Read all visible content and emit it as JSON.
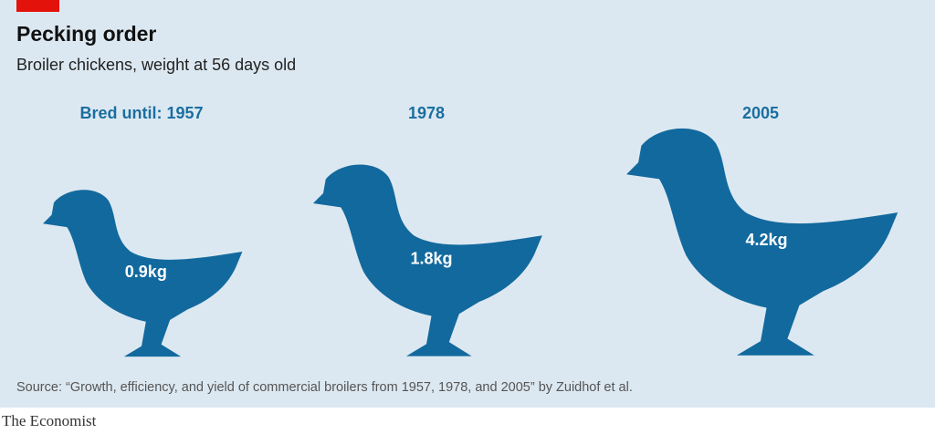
{
  "chart_data": {
    "type": "pictogram",
    "title": "Pecking order",
    "subtitle": "Broiler chickens, weight at 56 days old",
    "categories": [
      "Bred until: 1957",
      "1978",
      "2005"
    ],
    "values": [
      0.9,
      1.8,
      4.2
    ],
    "value_labels": [
      "0.9kg",
      "1.8kg",
      "4.2kg"
    ],
    "color": "#12699e",
    "source": "Source: “Growth, efficiency, and yield of commercial broilers from 1957, 1978, and 2005” by Zuidhof et al.",
    "publisher": "The Economist"
  }
}
